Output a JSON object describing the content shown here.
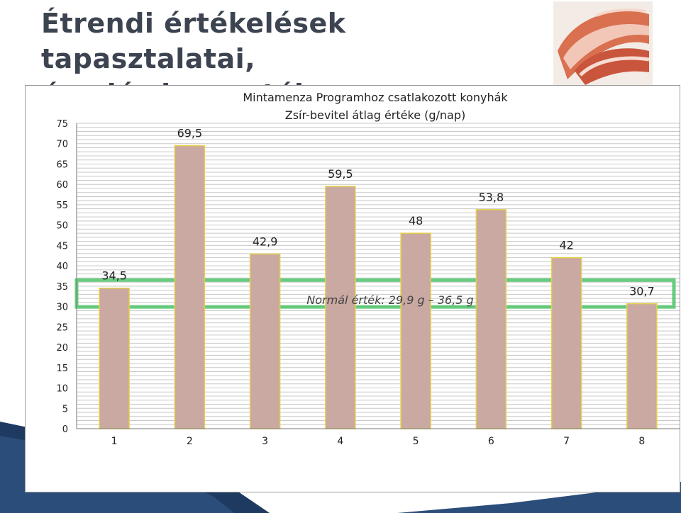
{
  "slide": {
    "title_line1": "Étrendi értékelések tapasztalatai,",
    "title_line2": "óvodás korosztály:",
    "photo_icon": "cured-ham-photo",
    "background_shape": "dark-blue-wave"
  },
  "chart_data": {
    "type": "bar",
    "title": "Mintamenza Programhoz csatlakozott konyhák",
    "subtitle": "Zsír-bevitel átlag értéke (g/nap)",
    "categories": [
      "1",
      "2",
      "3",
      "4",
      "5",
      "6",
      "7",
      "8"
    ],
    "values": [
      34.5,
      69.5,
      42.9,
      59.5,
      48,
      53.8,
      42,
      30.7
    ],
    "data_labels": [
      "34,5",
      "69,5",
      "42,9",
      "59,5",
      "48",
      "53,8",
      "42",
      "30,7"
    ],
    "y_ticks": [
      0,
      5,
      10,
      15,
      20,
      25,
      30,
      35,
      40,
      45,
      50,
      55,
      60,
      65,
      70,
      75
    ],
    "ylim": [
      0,
      75
    ],
    "grid": true,
    "legend": "none",
    "bar_color": "#c9a9a1",
    "bar_border_color": "#e6cf4a",
    "highlight_band": {
      "label": "Normál érték: 29,9 g – 36,5 g",
      "low": 29.9,
      "high": 36.5,
      "color": "#4fc46a"
    }
  }
}
